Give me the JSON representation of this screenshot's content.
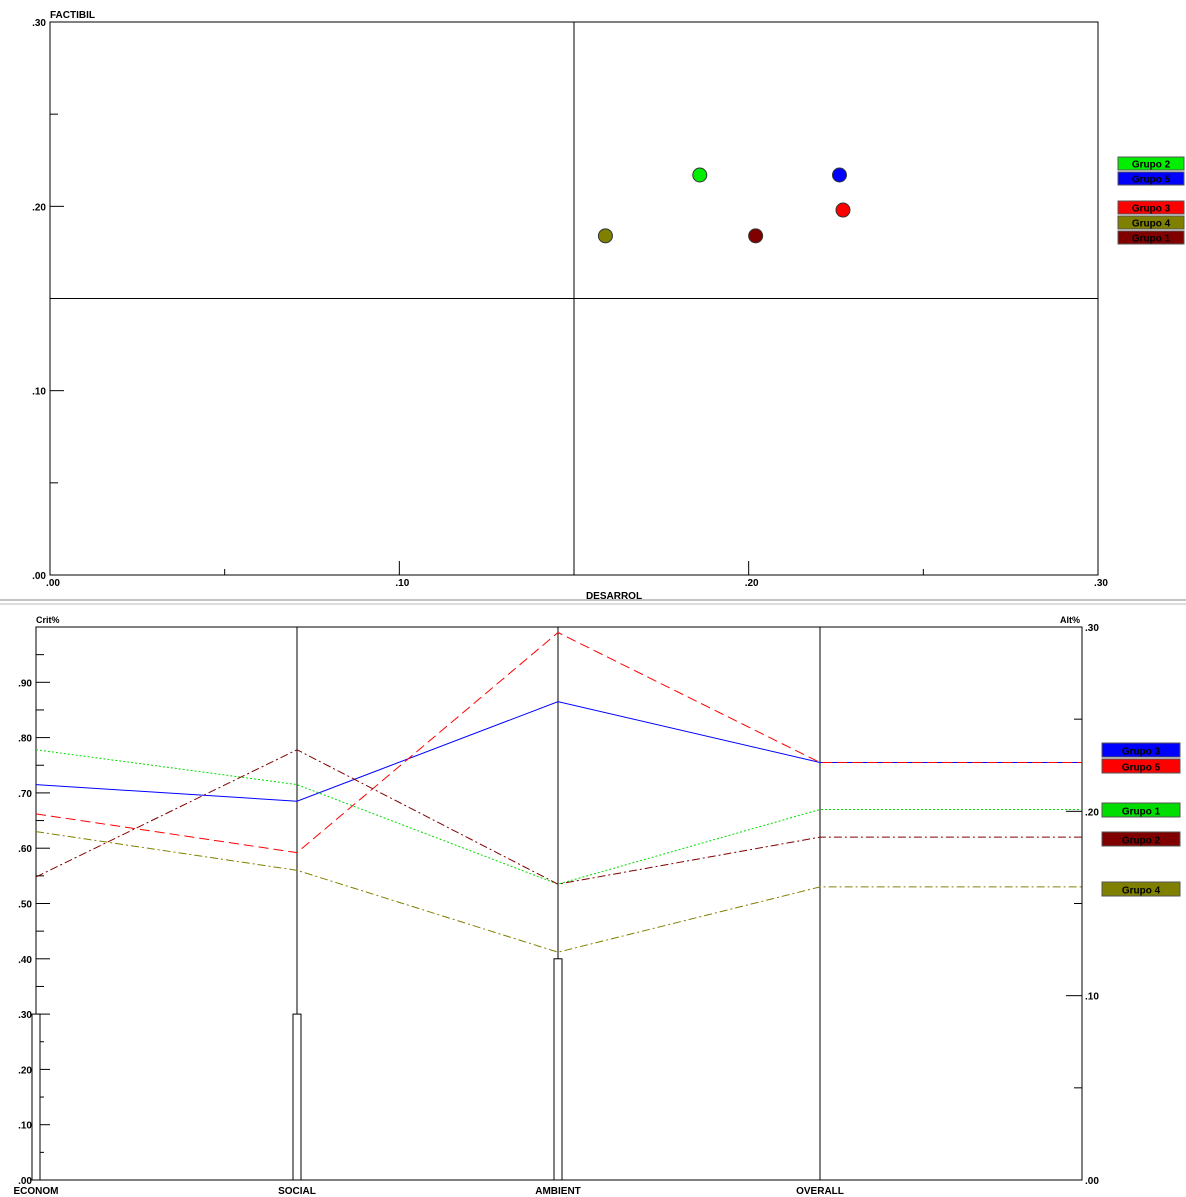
{
  "chart_data": [
    {
      "type": "scatter",
      "title": "",
      "xlabel": "DESARROL",
      "ylabel": "FACTIBIL",
      "xlim": [
        0,
        0.3
      ],
      "ylim": [
        0,
        0.3
      ],
      "xticks": [
        ".00",
        ".10",
        ".20",
        ".30"
      ],
      "yticks": [
        ".00",
        ".10",
        ".20",
        ".30"
      ],
      "quadrant_lines": {
        "x": 0.15,
        "y": 0.15
      },
      "points": [
        {
          "name": "Grupo 2",
          "x": 0.186,
          "y": 0.217,
          "color": "#00ee00"
        },
        {
          "name": "Grupo 5",
          "x": 0.226,
          "y": 0.217,
          "color": "#0000ff"
        },
        {
          "name": "Grupo 3",
          "x": 0.227,
          "y": 0.198,
          "color": "#ff0000"
        },
        {
          "name": "Grupo 4",
          "x": 0.159,
          "y": 0.184,
          "color": "#808000"
        },
        {
          "name": "Grupo 1",
          "x": 0.202,
          "y": 0.184,
          "color": "#800000"
        }
      ],
      "legend": [
        "Grupo 2",
        "Grupo 5",
        "Grupo 3",
        "Grupo 4",
        "Grupo 1"
      ],
      "legend_placement": "right"
    },
    {
      "type": "line",
      "title": "",
      "left_axis_label": "Crit%",
      "right_axis_label": "Alt%",
      "categories": [
        "ECONOM",
        "SOCIAL",
        "AMBIENT",
        "OVERALL"
      ],
      "left_ylim": [
        0,
        1.0
      ],
      "right_ylim": [
        0,
        0.3
      ],
      "left_ticks": [
        ".00",
        ".10",
        ".20",
        ".30",
        ".40",
        ".50",
        ".60",
        ".70",
        ".80",
        ".90"
      ],
      "right_ticks": [
        ".00",
        ".10",
        ".20",
        ".30"
      ],
      "criterion_weights": [
        0.3,
        0.3,
        0.4
      ],
      "series": [
        {
          "name": "Grupo 3",
          "color": "#0000ff",
          "dash": "solid",
          "values": [
            0.715,
            0.685,
            0.865,
            0.755
          ]
        },
        {
          "name": "Grupo 5",
          "color": "#ff0000",
          "dash": "dashed",
          "values": [
            0.662,
            0.592,
            0.99,
            0.755
          ]
        },
        {
          "name": "Grupo 1",
          "color": "#00dd00",
          "dash": "dotted",
          "values": [
            0.778,
            0.715,
            0.535,
            0.67
          ]
        },
        {
          "name": "Grupo 2",
          "color": "#800000",
          "dash": "dashdot",
          "values": [
            0.548,
            0.778,
            0.535,
            0.62
          ]
        },
        {
          "name": "Grupo 4",
          "color": "#808000",
          "dash": "dashdot",
          "values": [
            0.63,
            0.56,
            0.412,
            0.53
          ]
        }
      ],
      "legend_placement": "right"
    }
  ]
}
